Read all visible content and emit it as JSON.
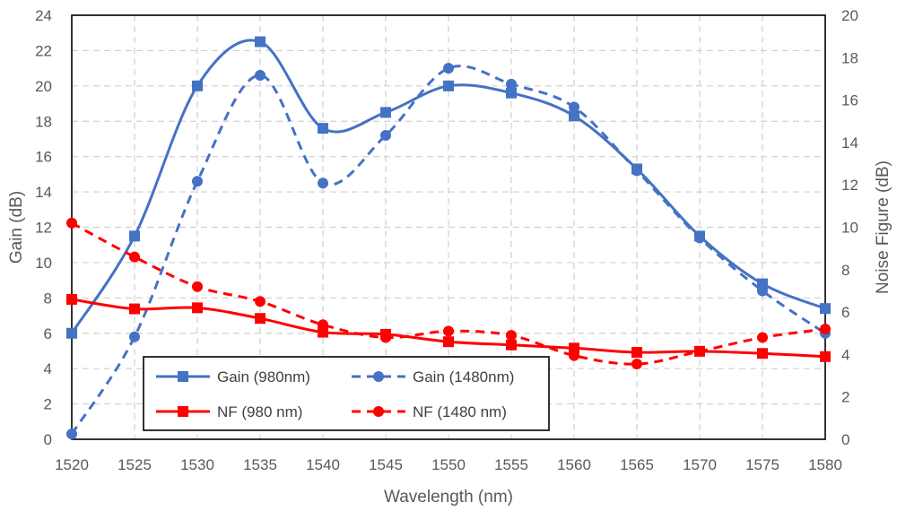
{
  "chart_data": {
    "type": "line",
    "title": "",
    "xlabel": "Wavelength (nm)",
    "ylabel": "Gain (dB)",
    "y2label": "Noise Figure (dB)",
    "xlim": [
      1520,
      1580
    ],
    "ylim": [
      0,
      24
    ],
    "y2lim": [
      0,
      20
    ],
    "x_ticks": [
      "1520",
      "1525",
      "1530",
      "1535",
      "1540",
      "1545",
      "1550",
      "1555",
      "1560",
      "1565",
      "1570",
      "1575",
      "1580"
    ],
    "y_ticks": [
      "0",
      "2",
      "4",
      "6",
      "8",
      "10",
      "12",
      "14",
      "16",
      "18",
      "20",
      "22",
      "24"
    ],
    "y2_ticks": [
      "0",
      "2",
      "4",
      "6",
      "8",
      "10",
      "12",
      "14",
      "16",
      "18",
      "20"
    ],
    "grid": true,
    "legend_position": "bottom-left",
    "x": [
      1520,
      1525,
      1530,
      1535,
      1540,
      1545,
      1550,
      1555,
      1560,
      1565,
      1570,
      1575,
      1580
    ],
    "series": [
      {
        "name": "Gain (980nm)",
        "axis": "left",
        "color": "#4472C4",
        "dash": "solid",
        "marker": "square",
        "values": [
          6.0,
          11.5,
          20.0,
          22.5,
          17.6,
          18.5,
          20.0,
          19.6,
          18.3,
          15.3,
          11.5,
          8.8,
          7.4
        ]
      },
      {
        "name": "Gain (1480nm)",
        "axis": "left",
        "color": "#4472C4",
        "dash": "dashed",
        "marker": "circle",
        "values": [
          0.3,
          5.8,
          14.6,
          20.6,
          14.5,
          17.2,
          21.0,
          20.1,
          18.8,
          15.2,
          11.4,
          8.4,
          6.0
        ]
      },
      {
        "name": "NF (980 nm)",
        "axis": "right",
        "color": "#FF0000",
        "dash": "solid",
        "marker": "square",
        "values": [
          6.6,
          6.15,
          6.2,
          5.7,
          5.05,
          4.95,
          4.6,
          4.45,
          4.3,
          4.1,
          4.15,
          4.05,
          3.9
        ]
      },
      {
        "name": "NF (1480 nm)",
        "axis": "right",
        "color": "#FF0000",
        "dash": "dashed",
        "marker": "circle",
        "values": [
          10.2,
          8.6,
          7.2,
          6.5,
          5.4,
          4.8,
          5.1,
          4.9,
          3.95,
          3.55,
          4.15,
          4.8,
          5.2
        ]
      }
    ]
  }
}
